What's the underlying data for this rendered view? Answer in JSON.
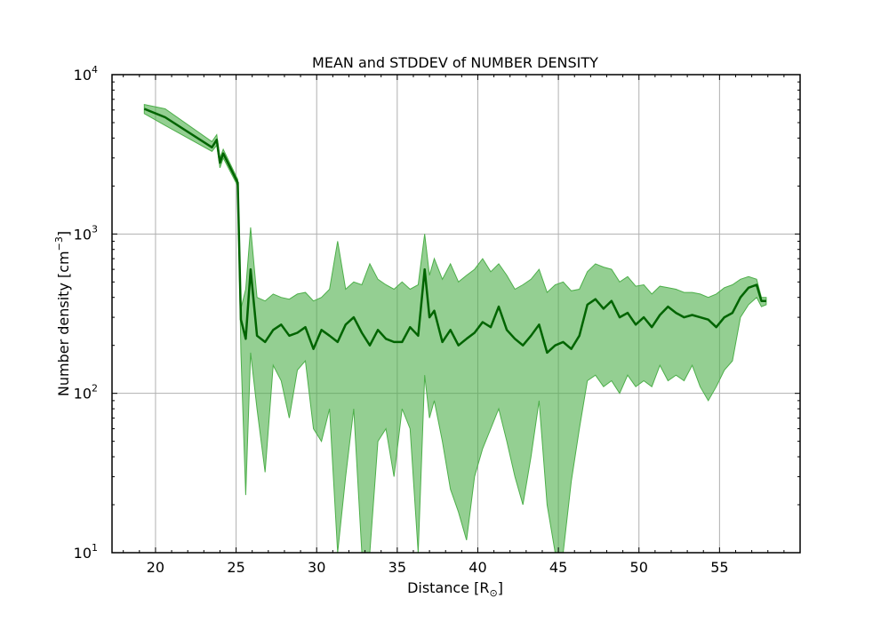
{
  "chart_data": {
    "type": "area",
    "title": "MEAN and STDDEV of NUMBER DENSITY",
    "xlabel": "Distance [R",
    "xlabel_sub": "⊙",
    "xlabel_close": "]",
    "ylabel": "Number density [cm",
    "ylabel_sup": "−3",
    "ylabel_close": "]",
    "xlim": [
      17.3,
      60.0
    ],
    "ylim": [
      10,
      10000
    ],
    "yscale": "log",
    "grid": true,
    "x_ticks": [
      20,
      25,
      30,
      35,
      40,
      45,
      50,
      55
    ],
    "x_tick_labels": [
      "20",
      "25",
      "30",
      "35",
      "40",
      "45",
      "50",
      "55"
    ],
    "y_ticks": [
      10,
      100,
      1000,
      10000
    ],
    "y_tick_labels": [
      {
        "base": "10",
        "exp": "1"
      },
      {
        "base": "10",
        "exp": "2"
      },
      {
        "base": "10",
        "exp": "3"
      },
      {
        "base": "10",
        "exp": "4"
      }
    ],
    "colors": {
      "mean": "#006400",
      "band": "#4daf4a",
      "grid": "#b0b0b0"
    },
    "series": [
      {
        "role": "mean",
        "x": [
          19.3,
          20.6,
          23.5,
          23.8,
          24.0,
          24.2,
          25.1,
          25.3,
          25.6,
          25.9,
          26.3,
          26.8,
          27.3,
          27.8,
          28.3,
          28.8,
          29.3,
          29.8,
          30.3,
          30.8,
          31.3,
          31.8,
          32.3,
          32.8,
          33.3,
          33.8,
          34.3,
          34.8,
          35.3,
          35.8,
          36.3,
          36.7,
          37.0,
          37.3,
          37.8,
          38.3,
          38.8,
          39.3,
          39.8,
          40.3,
          40.8,
          41.3,
          41.8,
          42.3,
          42.8,
          43.3,
          43.8,
          44.3,
          44.8,
          45.3,
          45.8,
          46.3,
          46.8,
          47.3,
          47.8,
          48.3,
          48.8,
          49.3,
          49.8,
          50.3,
          50.8,
          51.3,
          51.8,
          52.3,
          52.8,
          53.3,
          53.8,
          54.3,
          54.8,
          55.3,
          55.8,
          56.3,
          56.8,
          57.3,
          57.6,
          57.9
        ],
        "y": [
          6100,
          5400,
          3500,
          3900,
          2800,
          3200,
          2100,
          290,
          220,
          600,
          230,
          210,
          250,
          270,
          230,
          240,
          260,
          190,
          250,
          230,
          210,
          270,
          300,
          240,
          200,
          250,
          220,
          210,
          210,
          260,
          230,
          600,
          300,
          330,
          210,
          250,
          200,
          220,
          240,
          280,
          260,
          350,
          250,
          220,
          200,
          230,
          270,
          180,
          200,
          210,
          190,
          230,
          360,
          390,
          340,
          380,
          300,
          320,
          270,
          300,
          260,
          310,
          350,
          320,
          300,
          310,
          300,
          290,
          260,
          300,
          320,
          400,
          460,
          480,
          380,
          380
        ]
      },
      {
        "role": "upper",
        "x": [
          19.3,
          20.6,
          23.5,
          23.8,
          24.0,
          24.2,
          25.1,
          25.3,
          25.6,
          25.9,
          26.3,
          26.8,
          27.3,
          27.8,
          28.3,
          28.8,
          29.3,
          29.8,
          30.3,
          30.8,
          31.3,
          31.8,
          32.3,
          32.8,
          33.3,
          33.8,
          34.3,
          34.8,
          35.3,
          35.8,
          36.3,
          36.7,
          37.0,
          37.3,
          37.8,
          38.3,
          38.8,
          39.3,
          39.8,
          40.3,
          40.8,
          41.3,
          41.8,
          42.3,
          42.8,
          43.3,
          43.8,
          44.3,
          44.8,
          45.3,
          45.8,
          46.3,
          46.8,
          47.3,
          47.8,
          48.3,
          48.8,
          49.3,
          49.8,
          50.3,
          50.8,
          51.3,
          51.8,
          52.3,
          52.8,
          53.3,
          53.8,
          54.3,
          54.8,
          55.3,
          55.8,
          56.3,
          56.8,
          57.3,
          57.6,
          57.9
        ],
        "y": [
          6500,
          6100,
          3800,
          4200,
          3000,
          3400,
          2200,
          340,
          450,
          1100,
          400,
          380,
          420,
          400,
          390,
          420,
          430,
          380,
          400,
          450,
          900,
          450,
          500,
          480,
          650,
          520,
          480,
          450,
          500,
          450,
          480,
          1000,
          550,
          700,
          520,
          650,
          500,
          550,
          600,
          700,
          580,
          650,
          550,
          450,
          480,
          520,
          600,
          430,
          480,
          500,
          440,
          450,
          580,
          650,
          620,
          600,
          500,
          540,
          470,
          480,
          420,
          470,
          460,
          450,
          430,
          430,
          420,
          400,
          420,
          460,
          480,
          520,
          540,
          520,
          400,
          400
        ]
      },
      {
        "role": "lower",
        "x": [
          19.3,
          20.6,
          23.5,
          23.8,
          24.0,
          24.2,
          25.1,
          25.3,
          25.6,
          25.9,
          26.3,
          26.8,
          27.3,
          27.8,
          28.3,
          28.8,
          29.3,
          29.8,
          30.3,
          30.8,
          31.3,
          31.8,
          32.3,
          32.8,
          33.3,
          33.8,
          34.3,
          34.8,
          35.3,
          35.8,
          36.3,
          36.7,
          37.0,
          37.3,
          37.8,
          38.3,
          38.8,
          39.3,
          39.8,
          40.3,
          40.8,
          41.3,
          41.8,
          42.3,
          42.8,
          43.3,
          43.8,
          44.3,
          44.8,
          45.3,
          45.8,
          46.3,
          46.8,
          47.3,
          47.8,
          48.3,
          48.8,
          49.3,
          49.8,
          50.3,
          50.8,
          51.3,
          51.8,
          52.3,
          52.8,
          53.3,
          53.8,
          54.3,
          54.8,
          55.3,
          55.8,
          56.3,
          56.8,
          57.3,
          57.6,
          57.9
        ],
        "y": [
          5700,
          4800,
          3300,
          3600,
          2600,
          3000,
          2000,
          180,
          23,
          180,
          80,
          32,
          150,
          120,
          70,
          140,
          160,
          60,
          50,
          80,
          10,
          30,
          80,
          10,
          10,
          50,
          60,
          30,
          80,
          60,
          10,
          130,
          70,
          90,
          50,
          25,
          18,
          12,
          30,
          45,
          60,
          80,
          50,
          30,
          20,
          40,
          90,
          20,
          10,
          10,
          28,
          60,
          120,
          130,
          110,
          120,
          100,
          130,
          110,
          120,
          110,
          150,
          120,
          130,
          120,
          150,
          110,
          90,
          110,
          140,
          160,
          300,
          360,
          400,
          350,
          360
        ]
      }
    ]
  }
}
